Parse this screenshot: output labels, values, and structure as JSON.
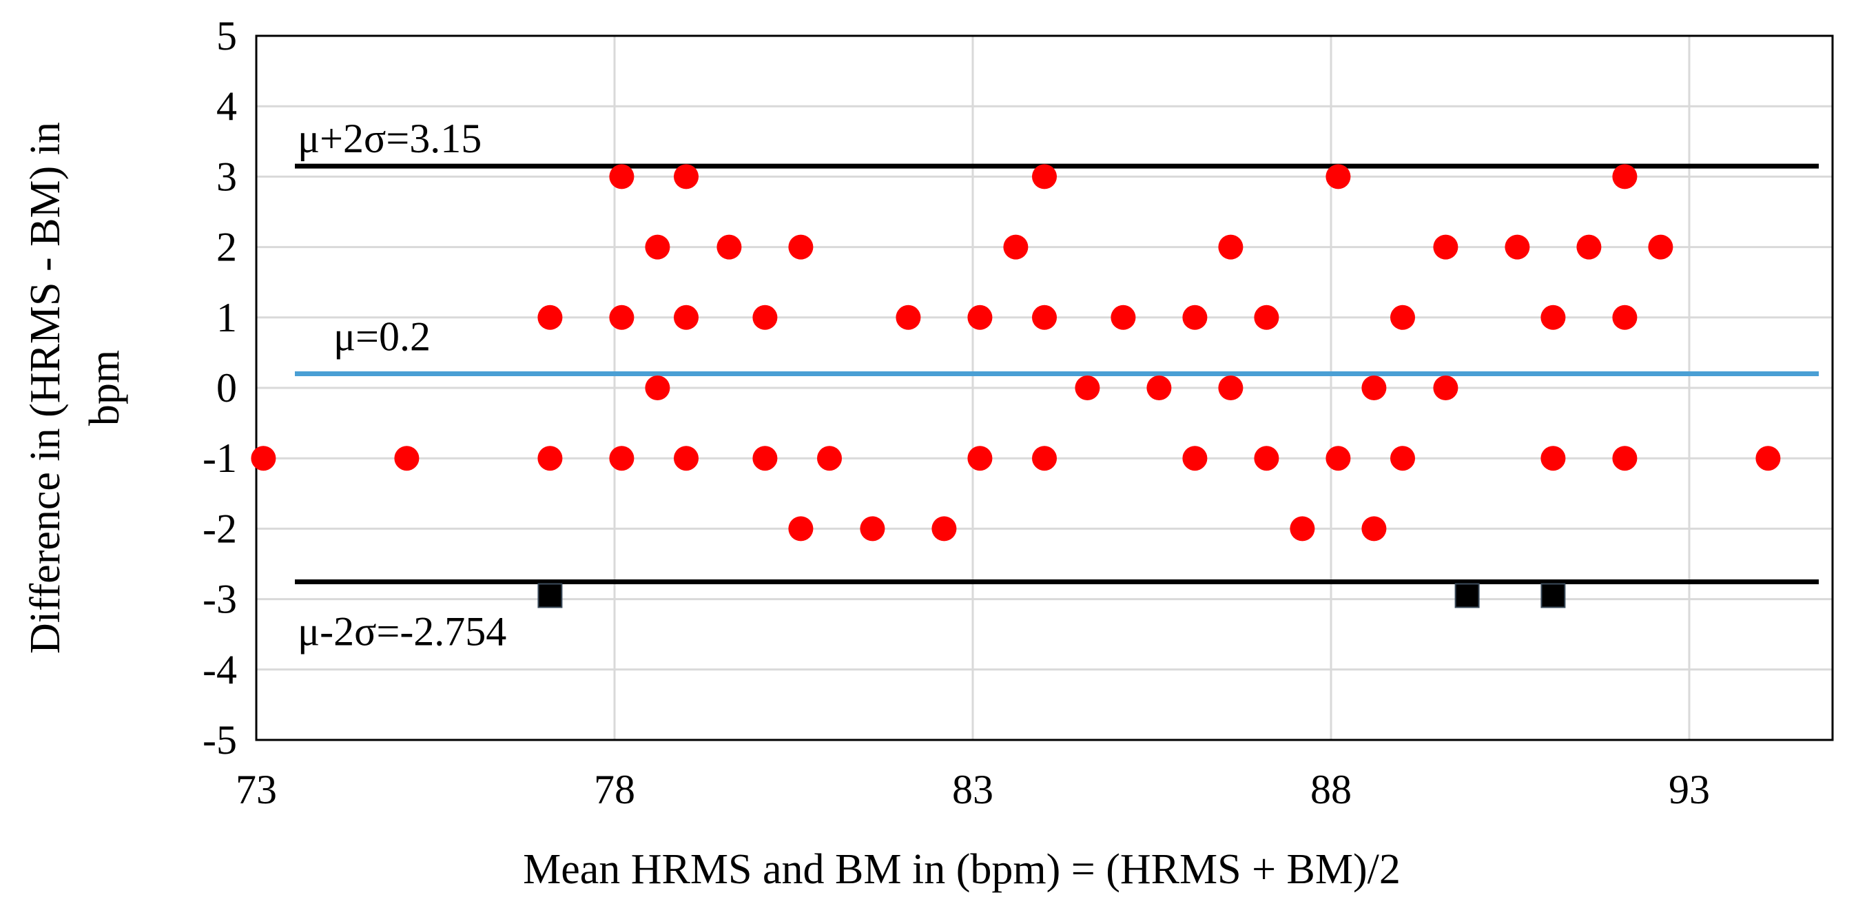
{
  "chart_data": {
    "type": "scatter",
    "title": "",
    "xlabel": "Mean HRMS and BM in (bpm) = (HRMS + BM)/2",
    "ylabel_lines": [
      "Difference in (HRMS - BM) in",
      "bpm"
    ],
    "xlim": [
      73,
      95
    ],
    "ylim": [
      -5,
      5
    ],
    "x_ticks": [
      73,
      78,
      83,
      88,
      93
    ],
    "x_tick_labels": [
      "73",
      "78",
      "83",
      "88",
      "93"
    ],
    "y_ticks": [
      5,
      4,
      3,
      2,
      1,
      0,
      -1,
      -2,
      -3,
      -4,
      -5
    ],
    "y_tick_labels": [
      "5",
      "4",
      "3",
      "2",
      "1",
      "0",
      "-1",
      "-2",
      "-3",
      "-4",
      "-5"
    ],
    "grid": true,
    "reference_lines": [
      {
        "label": "μ+2σ=3.15",
        "y": 3.15,
        "color": "#000000"
      },
      {
        "label": "μ=0.2",
        "y": 0.2,
        "color": "#4a9fd4"
      },
      {
        "label": "μ-2σ=-2.754",
        "y": -2.754,
        "color": "#000000"
      }
    ],
    "series": [
      {
        "marker": "circle",
        "color": "#ff0000",
        "points": [
          [
            73.1,
            -1
          ],
          [
            75.1,
            -1
          ],
          [
            77.1,
            -1
          ],
          [
            78.1,
            -1
          ],
          [
            79.0,
            -1
          ],
          [
            80.1,
            -1
          ],
          [
            81.0,
            -1
          ],
          [
            83.1,
            -1
          ],
          [
            84.0,
            -1
          ],
          [
            86.1,
            -1
          ],
          [
            87.1,
            -1
          ],
          [
            88.1,
            -1
          ],
          [
            89.0,
            -1
          ],
          [
            91.1,
            -1
          ],
          [
            92.1,
            -1
          ],
          [
            94.1,
            -1
          ],
          [
            80.6,
            -2
          ],
          [
            81.6,
            -2
          ],
          [
            82.6,
            -2
          ],
          [
            87.6,
            -2
          ],
          [
            88.6,
            -2
          ],
          [
            78.6,
            0
          ],
          [
            84.6,
            0
          ],
          [
            85.6,
            0
          ],
          [
            86.6,
            0
          ],
          [
            88.6,
            0
          ],
          [
            89.6,
            0
          ],
          [
            77.1,
            1
          ],
          [
            78.1,
            1
          ],
          [
            79.0,
            1
          ],
          [
            80.1,
            1
          ],
          [
            82.1,
            1
          ],
          [
            83.1,
            1
          ],
          [
            84.0,
            1
          ],
          [
            85.1,
            1
          ],
          [
            86.1,
            1
          ],
          [
            87.1,
            1
          ],
          [
            89.0,
            1
          ],
          [
            91.1,
            1
          ],
          [
            92.1,
            1
          ],
          [
            78.6,
            2
          ],
          [
            79.6,
            2
          ],
          [
            80.6,
            2
          ],
          [
            83.6,
            2
          ],
          [
            86.6,
            2
          ],
          [
            89.6,
            2
          ],
          [
            90.6,
            2
          ],
          [
            91.6,
            2
          ],
          [
            92.6,
            2
          ],
          [
            78.1,
            3
          ],
          [
            79.0,
            3
          ],
          [
            84.0,
            3
          ],
          [
            88.1,
            3
          ],
          [
            92.1,
            3
          ]
        ]
      },
      {
        "marker": "square",
        "color": "#000000",
        "points": [
          [
            77.1,
            -2.95
          ],
          [
            89.9,
            -2.95
          ],
          [
            91.1,
            -2.95
          ]
        ]
      }
    ]
  }
}
